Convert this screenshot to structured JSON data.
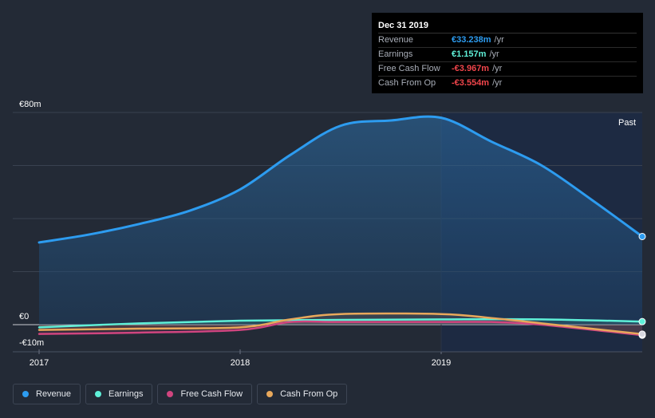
{
  "tooltip": {
    "date": "Dec 31 2019",
    "rows": [
      {
        "label": "Revenue",
        "value": "€33.238m",
        "unit": "/yr",
        "color": "#2d9cf0"
      },
      {
        "label": "Earnings",
        "value": "€1.157m",
        "unit": "/yr",
        "color": "#5ff0d8"
      },
      {
        "label": "Free Cash Flow",
        "value": "-€3.967m",
        "unit": "/yr",
        "color": "#f0454b"
      },
      {
        "label": "Cash From Op",
        "value": "-€3.554m",
        "unit": "/yr",
        "color": "#f0454b"
      }
    ]
  },
  "past_label": "Past",
  "legend": [
    {
      "label": "Revenue",
      "color": "#2d9cf0"
    },
    {
      "label": "Earnings",
      "color": "#5ff0d8"
    },
    {
      "label": "Free Cash Flow",
      "color": "#d0457f"
    },
    {
      "label": "Cash From Op",
      "color": "#e8a85b"
    }
  ],
  "chart_data": {
    "type": "line",
    "y_tick_labels": [
      "€80m",
      "€0",
      "-€10m"
    ],
    "x_tick_labels": [
      "2017",
      "2018",
      "2019"
    ],
    "ylim": [
      -10,
      80
    ],
    "xlim": [
      2017.0,
      2020.0
    ],
    "grid": true,
    "legend_position": "bottom-left",
    "series": [
      {
        "name": "Revenue",
        "color": "#2d9cf0",
        "x": [
          2017.0,
          2017.25,
          2017.5,
          2017.75,
          2018.0,
          2018.25,
          2018.5,
          2018.75,
          2019.0,
          2019.25,
          2019.5,
          2019.75,
          2020.0
        ],
        "y": [
          31,
          34,
          38,
          43,
          51,
          64,
          75,
          77,
          78,
          69,
          60,
          47,
          33.238
        ]
      },
      {
        "name": "Earnings",
        "color": "#5ff0d8",
        "x": [
          2017.0,
          2017.5,
          2018.0,
          2018.5,
          2019.0,
          2019.5,
          2020.0
        ],
        "y": [
          -1,
          0.5,
          1.5,
          1.8,
          2,
          2,
          1.157
        ]
      },
      {
        "name": "Free Cash Flow",
        "color": "#d0457f",
        "x": [
          2017.0,
          2017.5,
          2018.0,
          2018.25,
          2018.5,
          2019.0,
          2019.25,
          2019.5,
          2020.0
        ],
        "y": [
          -3.5,
          -3,
          -2,
          1,
          1,
          1,
          1,
          0,
          -3.967
        ]
      },
      {
        "name": "Cash From Op",
        "color": "#e8a85b",
        "x": [
          2017.0,
          2017.5,
          2018.0,
          2018.25,
          2018.5,
          2019.0,
          2019.25,
          2019.5,
          2020.0
        ],
        "y": [
          -2,
          -1.5,
          -1,
          2,
          4,
          4,
          2.5,
          0.5,
          -3.554
        ]
      }
    ]
  }
}
